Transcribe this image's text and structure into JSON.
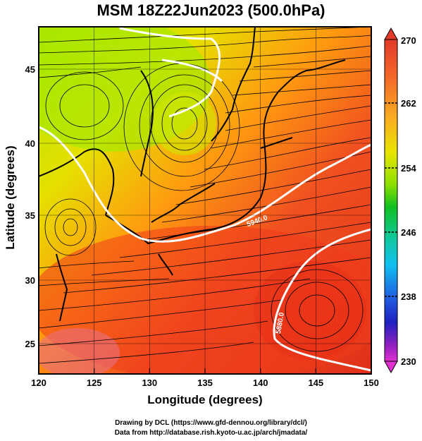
{
  "title": "MSM 18Z22Jun2023 (500.0hPa)",
  "axes": {
    "xlabel": "Longitude (degrees)",
    "ylabel": "Latitude  (degrees)",
    "x_ticks": [
      "120",
      "125",
      "130",
      "135",
      "140",
      "145",
      "150"
    ],
    "y_ticks": [
      "25",
      "30",
      "35",
      "40",
      "45"
    ]
  },
  "colorbar": {
    "ticks": [
      "270",
      "262",
      "254",
      "246",
      "238",
      "230"
    ]
  },
  "contour_labels": [
    "5880.0",
    "5940.0"
  ],
  "credits": {
    "line1": "Drawing by DCL (https://www.gfd-dennou.org/library/dcl/)",
    "line2": "Data from http://database.rish.kyoto-u.ac.jp/arch/jmadata/"
  },
  "colors": {
    "frame": "#000000",
    "contour": "#ffffff",
    "coast": "#000000"
  }
}
